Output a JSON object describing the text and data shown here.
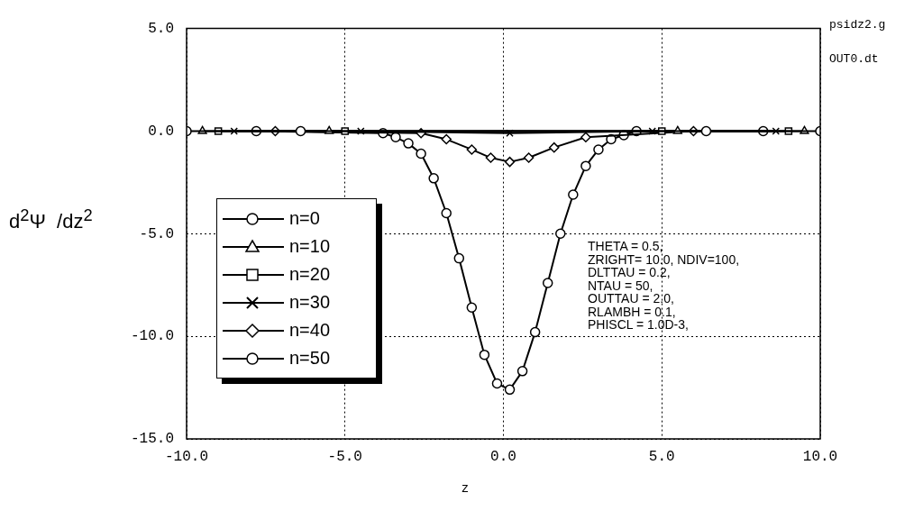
{
  "chart_data": {
    "type": "line",
    "xlabel": "z",
    "ylabel": "d$^{2}$Ψ  /dz$^{2}$",
    "xlim": [
      -10,
      10
    ],
    "xticks": [
      {
        "value": -10,
        "label": "-10.0"
      },
      {
        "value": -5,
        "label": "-5.0"
      },
      {
        "value": 0,
        "label": "0.0"
      },
      {
        "value": 5,
        "label": "5.0"
      },
      {
        "value": 10,
        "label": "10.0"
      }
    ],
    "ylim": [
      -15,
      5
    ],
    "yticks": [
      {
        "value": -15,
        "label": "-15.0"
      },
      {
        "value": -10,
        "label": "-10.0"
      },
      {
        "value": -5,
        "label": "-5.0"
      },
      {
        "value": 0,
        "label": "0.0"
      },
      {
        "value": 5,
        "label": "5.0"
      }
    ],
    "grid": true,
    "legend": "bottom left",
    "line_style": "solid",
    "series": [
      {
        "name": "n=0",
        "color": "#000000",
        "marker": "circle",
        "x": [
          -10,
          -6.4,
          6.4,
          10
        ],
        "values": [
          0,
          0,
          0,
          0
        ]
      },
      {
        "name": "n=10",
        "color": "#000000",
        "marker": "triangle",
        "x": [
          -9.5,
          -5.5,
          5.5,
          9.5
        ],
        "values": [
          0,
          0,
          0,
          0
        ]
      },
      {
        "name": "n=20",
        "color": "#000000",
        "marker": "square",
        "x": [
          -9,
          -5,
          5,
          9
        ],
        "values": [
          0,
          0,
          0,
          0
        ]
      },
      {
        "name": "n=30",
        "color": "#000000",
        "marker": "cross",
        "x": [
          -8.5,
          -4.5,
          0.2,
          4.7,
          8.6
        ],
        "values": [
          0,
          0,
          -0.1,
          0,
          0
        ]
      },
      {
        "name": "n=40",
        "color": "#000000",
        "marker": "diamond",
        "x": [
          -7.2,
          -2.6,
          -1.8,
          -1.0,
          -0.4,
          0.2,
          0.8,
          1.6,
          2.6,
          6.0
        ],
        "values": [
          0,
          -0.1,
          -0.4,
          -0.9,
          -1.3,
          -1.5,
          -1.3,
          -0.8,
          -0.3,
          0
        ]
      },
      {
        "name": "n=50",
        "color": "#000000",
        "marker": "circle",
        "x": [
          -7.8,
          -3.8,
          -3.4,
          -3.0,
          -2.6,
          -2.2,
          -1.8,
          -1.4,
          -1.0,
          -0.6,
          -0.2,
          0.2,
          0.6,
          1.0,
          1.4,
          1.8,
          2.2,
          2.6,
          3.0,
          3.4,
          3.8,
          4.2,
          8.2
        ],
        "values": [
          0,
          -0.1,
          -0.3,
          -0.6,
          -1.1,
          -2.3,
          -4.0,
          -6.2,
          -8.6,
          -10.9,
          -12.3,
          -12.6,
          -11.7,
          -9.8,
          -7.4,
          -5.0,
          -3.1,
          -1.7,
          -0.9,
          -0.4,
          -0.2,
          0,
          0
        ]
      }
    ],
    "annotations": [
      "psidz2.g",
      "OUT0.dt",
      "THETA = 0.5,",
      "ZRIGHT= 10.0, NDIV=100,",
      "DLTTAU = 0.2,",
      "NTAU = 50,",
      "OUTTAU = 2.0,",
      "RLAMBH = 0.1,",
      "PHISCL = 1.0D-3,"
    ]
  }
}
